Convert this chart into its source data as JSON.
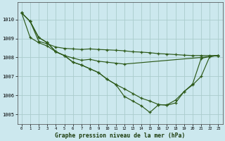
{
  "title": "Graphe pression niveau de la mer (hPa)",
  "background_color": "#cce8ee",
  "grid_color": "#aacccc",
  "line_color": "#2d5a1a",
  "xlim": [
    -0.5,
    23.5
  ],
  "ylim": [
    1004.5,
    1010.9
  ],
  "yticks": [
    1005,
    1006,
    1007,
    1008,
    1009,
    1010
  ],
  "xticks": [
    0,
    1,
    2,
    3,
    4,
    5,
    6,
    7,
    8,
    9,
    10,
    11,
    12,
    13,
    14,
    15,
    16,
    17,
    18,
    19,
    20,
    21,
    22,
    23
  ],
  "series1": {
    "x": [
      0,
      1,
      2,
      3,
      4,
      5,
      6,
      7,
      8,
      9,
      10,
      11,
      12,
      13,
      14,
      15,
      16,
      17,
      18,
      19,
      20,
      21,
      22,
      23
    ],
    "y": [
      1010.35,
      1009.9,
      1008.85,
      1008.72,
      1008.55,
      1008.48,
      1008.45,
      1008.42,
      1008.45,
      1008.42,
      1008.4,
      1008.38,
      1008.35,
      1008.3,
      1008.28,
      1008.25,
      1008.2,
      1008.18,
      1008.15,
      1008.12,
      1008.1,
      1008.1,
      1008.1,
      1008.1
    ]
  },
  "series2": {
    "x": [
      0,
      1,
      2,
      3,
      4,
      5,
      6,
      7,
      8,
      9,
      10,
      11,
      12,
      21,
      22,
      23
    ],
    "y": [
      1010.35,
      1009.05,
      1008.78,
      1008.6,
      1008.3,
      1008.1,
      1007.97,
      1007.85,
      1007.9,
      1007.8,
      1007.75,
      1007.7,
      1007.65,
      1008.0,
      1008.05,
      1008.1
    ]
  },
  "series3": {
    "x": [
      0,
      1,
      2,
      3,
      4,
      5,
      6,
      7,
      8,
      9,
      10,
      11,
      12,
      13,
      14,
      15,
      16,
      17,
      18,
      19,
      20,
      21,
      22,
      23
    ],
    "y": [
      1010.35,
      1009.9,
      1009.05,
      1008.78,
      1008.3,
      1008.1,
      1007.75,
      1007.6,
      1007.4,
      1007.2,
      1006.85,
      1006.58,
      1005.95,
      1005.7,
      1005.45,
      1005.1,
      1005.5,
      1005.5,
      1005.75,
      1006.2,
      1006.6,
      1007.95,
      1008.05,
      1008.1
    ]
  },
  "series4": {
    "x": [
      0,
      1,
      2,
      3,
      4,
      5,
      6,
      7,
      8,
      9,
      10,
      11,
      12,
      13,
      14,
      15,
      16,
      17,
      18,
      19,
      20,
      21,
      22,
      23
    ],
    "y": [
      1010.35,
      1009.9,
      1009.05,
      1008.78,
      1008.3,
      1008.1,
      1007.75,
      1007.6,
      1007.4,
      1007.2,
      1006.85,
      1006.58,
      1006.35,
      1006.1,
      1005.85,
      1005.7,
      1005.52,
      1005.48,
      1005.6,
      1006.2,
      1006.55,
      1007.0,
      1008.05,
      1008.1
    ]
  }
}
